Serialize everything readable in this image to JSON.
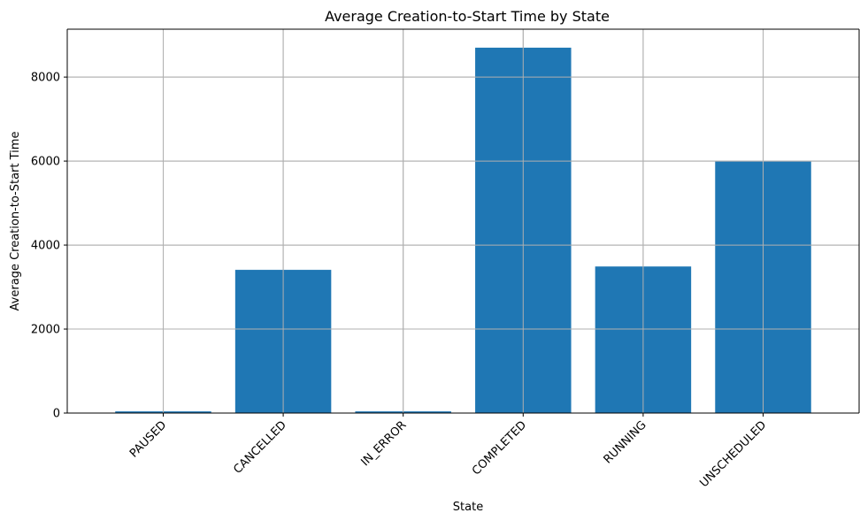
{
  "chart_data": {
    "type": "bar",
    "title": "Average Creation-to-Start Time by State",
    "xlabel": "State",
    "ylabel": "Average Creation-to-Start Time",
    "categories": [
      "PAUSED",
      "CANCELLED",
      "IN_ERROR",
      "COMPLETED",
      "RUNNING",
      "UNSCHEDULED"
    ],
    "values": [
      40,
      3410,
      40,
      8700,
      3490,
      5990
    ],
    "ylim": [
      0,
      9140
    ],
    "yticks": [
      0,
      2000,
      4000,
      6000,
      8000
    ],
    "ytick_labels": [
      "0",
      "2000",
      "4000",
      "6000",
      "8000"
    ],
    "grid": true,
    "bar_color": "#1f77b4"
  }
}
